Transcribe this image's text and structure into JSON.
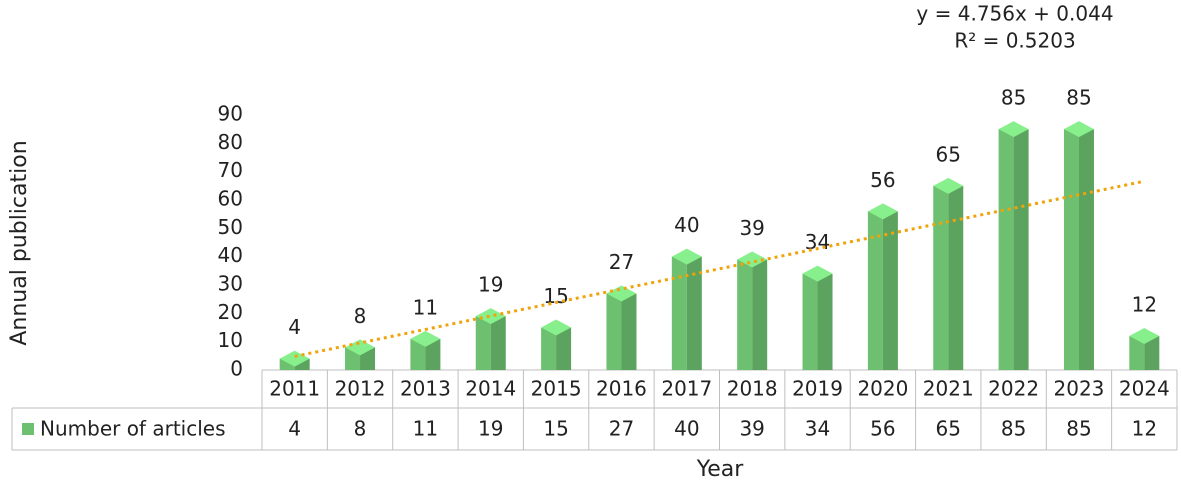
{
  "chart_data": {
    "type": "bar",
    "y_label": "Annual publication",
    "x_label": "Year",
    "categories": [
      "2011",
      "2012",
      "2013",
      "2014",
      "2015",
      "2016",
      "2017",
      "2018",
      "2019",
      "2020",
      "2021",
      "2022",
      "2023",
      "2024"
    ],
    "series": [
      {
        "name": "Number of articles",
        "color": "#6cc070",
        "values": [
          4,
          8,
          11,
          19,
          15,
          27,
          40,
          39,
          34,
          56,
          65,
          85,
          85,
          12
        ]
      }
    ],
    "ylim": [
      0,
      90
    ],
    "yticks": [
      0,
      10,
      20,
      30,
      40,
      50,
      60,
      70,
      80,
      90
    ],
    "trendline": {
      "type": "linear",
      "slope": 4.756,
      "intercept": 0.044,
      "r2": 0.5203,
      "color": "#f0a30a",
      "equation": "y = 4.756x + 0.044",
      "r2_label": "R² = 0.5203"
    },
    "data_table": true
  }
}
